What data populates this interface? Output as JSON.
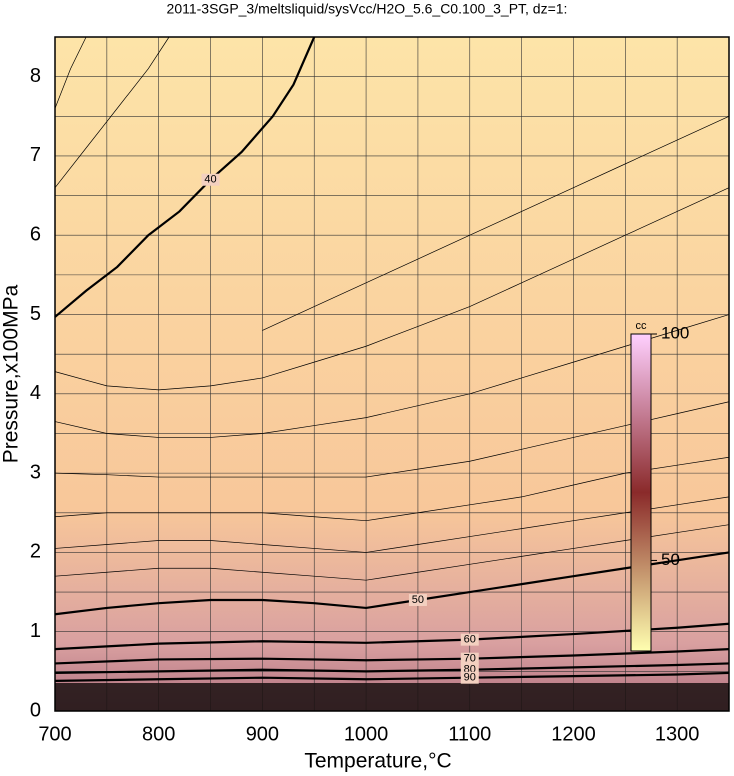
{
  "chart_data": {
    "type": "contour",
    "title": "2011-3SGP_3/meltsliquid/sysVcc/H2O_5.6_C0.100_3_PT, dz=1:",
    "x_label": "Temperature,°C",
    "y_label": "Pressure,x100MPa",
    "xlim": [
      700,
      1350
    ],
    "ylim": [
      0,
      8.5
    ],
    "xticks": [
      700,
      800,
      900,
      1000,
      1100,
      1200,
      1300
    ],
    "yticks": [
      0,
      1,
      2,
      3,
      4,
      5,
      6,
      7,
      8
    ],
    "xminorticks": [
      750,
      850,
      950,
      1050,
      1150,
      1250
    ],
    "yminorticks": [
      0.5,
      1.5,
      2.5,
      3.5,
      4.5,
      5.5,
      6.5,
      7.5
    ],
    "grid": true,
    "series": [
      {
        "label": "40",
        "x": [
          700,
          730,
          760,
          790,
          820,
          850,
          880,
          910,
          930,
          950
        ],
        "values": [
          4.97,
          5.3,
          5.6,
          6.0,
          6.3,
          6.7,
          7.05,
          7.5,
          7.9,
          8.5
        ]
      },
      {
        "label": "50",
        "x": [
          700,
          750,
          800,
          850,
          900,
          950,
          1000,
          1050,
          1100,
          1150,
          1200,
          1250,
          1300,
          1350
        ],
        "values": [
          1.22,
          1.3,
          1.36,
          1.4,
          1.4,
          1.36,
          1.3,
          1.4,
          1.5,
          1.6,
          1.7,
          1.8,
          1.9,
          2.0
        ]
      },
      {
        "label": "60",
        "x": [
          700,
          800,
          900,
          1000,
          1100,
          1200,
          1300,
          1350
        ],
        "values": [
          0.78,
          0.85,
          0.88,
          0.86,
          0.9,
          0.97,
          1.05,
          1.1
        ]
      },
      {
        "label": "70",
        "x": [
          700,
          800,
          900,
          1000,
          1100,
          1200,
          1300,
          1350
        ],
        "values": [
          0.6,
          0.65,
          0.66,
          0.64,
          0.66,
          0.7,
          0.75,
          0.78
        ]
      },
      {
        "label": "80",
        "x": [
          700,
          800,
          900,
          1000,
          1100,
          1200,
          1300,
          1350
        ],
        "values": [
          0.48,
          0.5,
          0.52,
          0.5,
          0.52,
          0.55,
          0.58,
          0.6
        ]
      },
      {
        "label": "90",
        "x": [
          700,
          800,
          900,
          1000,
          1100,
          1200,
          1300,
          1350
        ],
        "values": [
          0.38,
          0.4,
          0.42,
          0.4,
          0.42,
          0.44,
          0.46,
          0.48
        ]
      },
      {
        "x": [
          700,
          750,
          800,
          850,
          900,
          950,
          1000,
          1050,
          1100,
          1150,
          1200,
          1250,
          1300,
          1350
        ],
        "values": [
          4.28,
          4.1,
          4.05,
          4.1,
          4.2,
          4.4,
          4.6,
          4.85,
          5.1,
          5.4,
          5.7,
          6.0,
          6.3,
          6.6
        ]
      },
      {
        "x": [
          700,
          750,
          800,
          850,
          900,
          950,
          1000,
          1050,
          1100,
          1150,
          1200,
          1250,
          1300,
          1350
        ],
        "values": [
          3.65,
          3.5,
          3.45,
          3.45,
          3.5,
          3.6,
          3.7,
          3.85,
          4.0,
          4.2,
          4.4,
          4.6,
          4.8,
          5.0
        ]
      },
      {
        "x": [
          700,
          750,
          800,
          850,
          900,
          950,
          1000,
          1050,
          1100,
          1150,
          1200,
          1250,
          1300,
          1350
        ],
        "values": [
          3.0,
          2.98,
          2.95,
          2.95,
          2.95,
          2.95,
          2.95,
          3.05,
          3.15,
          3.3,
          3.45,
          3.6,
          3.75,
          3.9
        ]
      },
      {
        "x": [
          700,
          750,
          800,
          850,
          900,
          950,
          1000,
          1050,
          1100,
          1150,
          1200,
          1250,
          1300,
          1350
        ],
        "values": [
          2.45,
          2.5,
          2.5,
          2.5,
          2.5,
          2.45,
          2.4,
          2.5,
          2.6,
          2.7,
          2.85,
          3.0,
          3.1,
          3.2
        ]
      },
      {
        "x": [
          700,
          750,
          800,
          850,
          900,
          950,
          1000,
          1050,
          1100,
          1150,
          1200,
          1250,
          1300,
          1350
        ],
        "values": [
          2.05,
          2.1,
          2.15,
          2.15,
          2.1,
          2.05,
          2.0,
          2.1,
          2.2,
          2.3,
          2.4,
          2.5,
          2.6,
          2.7
        ]
      },
      {
        "x": [
          700,
          750,
          800,
          850,
          900,
          950,
          1000,
          1050,
          1100,
          1150,
          1200,
          1250,
          1300,
          1350
        ],
        "values": [
          1.7,
          1.75,
          1.8,
          1.8,
          1.75,
          1.7,
          1.65,
          1.75,
          1.85,
          1.95,
          2.05,
          2.15,
          2.25,
          2.35
        ]
      },
      {
        "x": [
          700,
          730,
          760,
          790,
          810
        ],
        "values": [
          6.6,
          7.1,
          7.6,
          8.1,
          8.5
        ]
      },
      {
        "x": [
          700,
          715,
          730
        ],
        "values": [
          7.6,
          8.1,
          8.5
        ]
      },
      {
        "x": [
          900,
          950,
          1000,
          1050,
          1100,
          1150,
          1200,
          1250,
          1300,
          1350
        ],
        "values": [
          4.8,
          5.1,
          5.4,
          5.7,
          6.0,
          6.3,
          6.6,
          6.9,
          7.2,
          7.5
        ]
      }
    ],
    "colorbar": {
      "label": "cc",
      "lim": [
        30,
        100
      ],
      "ticks": [
        50,
        100
      ],
      "colors": [
        "#ffffb0",
        "#8a2a2a",
        "#ffd0ff"
      ]
    }
  }
}
